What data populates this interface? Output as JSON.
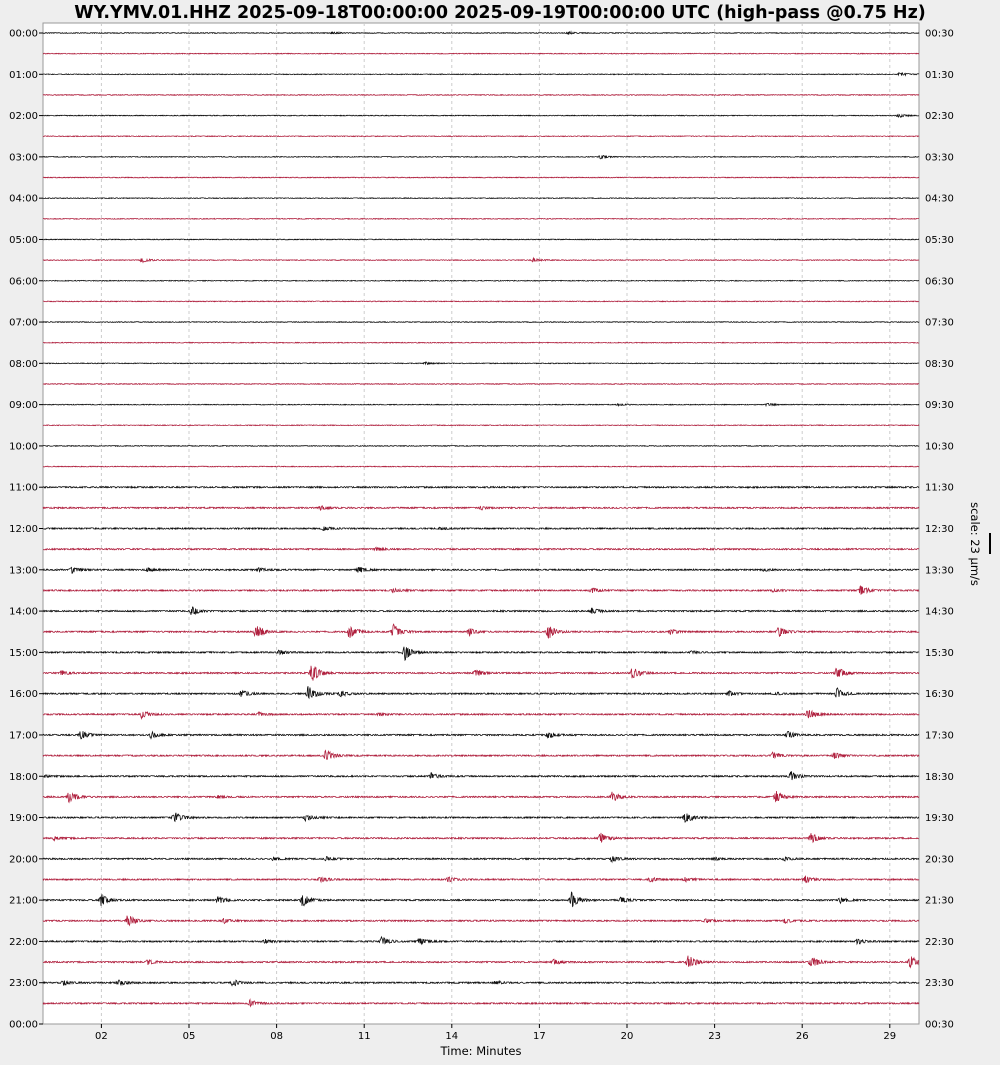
{
  "chart_data": {
    "type": "line",
    "title": "WY.YMV.01.HHZ 2025-09-18T00:00:00 2025-09-19T00:00:00 UTC (high-pass @0.75 Hz)",
    "xlabel": "Time: Minutes",
    "xlim": [
      0,
      30
    ],
    "xticks": [
      2,
      5,
      8,
      11,
      14,
      17,
      20,
      23,
      26,
      29
    ],
    "xtick_labels": [
      "02",
      "05",
      "08",
      "11",
      "14",
      "17",
      "20",
      "23",
      "26",
      "29"
    ],
    "left_labels": [
      "00:00",
      "01:00",
      "02:00",
      "03:00",
      "04:00",
      "05:00",
      "06:00",
      "07:00",
      "08:00",
      "09:00",
      "10:00",
      "11:00",
      "12:00",
      "13:00",
      "14:00",
      "15:00",
      "16:00",
      "17:00",
      "18:00",
      "19:00",
      "20:00",
      "21:00",
      "22:00",
      "23:00",
      "00:00"
    ],
    "right_labels": [
      "00:30",
      "01:30",
      "02:30",
      "03:30",
      "04:30",
      "05:30",
      "06:30",
      "07:30",
      "08:30",
      "09:30",
      "10:30",
      "11:30",
      "12:30",
      "13:30",
      "14:30",
      "15:30",
      "16:30",
      "17:30",
      "18:30",
      "19:30",
      "20:30",
      "21:30",
      "22:30",
      "23:30",
      "00:30"
    ],
    "scale_label": "scale: 23 µm/s",
    "scale_value_um_s": 23,
    "grid": "vertical dashed",
    "colors": {
      "even": "#111111",
      "odd": "#b0213f",
      "grid": "#cccccc"
    },
    "traces": [
      {
        "start": "00:00",
        "events": [
          [
            9.9,
            2
          ],
          [
            18.0,
            2
          ]
        ]
      },
      {
        "start": "00:30",
        "events": []
      },
      {
        "start": "01:00",
        "events": [
          [
            29.35,
            3
          ]
        ]
      },
      {
        "start": "01:30",
        "events": []
      },
      {
        "start": "02:00",
        "events": [
          [
            29.3,
            3
          ]
        ]
      },
      {
        "start": "02:30",
        "events": []
      },
      {
        "start": "03:00",
        "events": [
          [
            19.1,
            3
          ]
        ]
      },
      {
        "start": "03:30",
        "events": []
      },
      {
        "start": "04:00",
        "events": []
      },
      {
        "start": "04:30",
        "events": []
      },
      {
        "start": "05:00",
        "events": []
      },
      {
        "start": "05:30",
        "events": [
          [
            3.4,
            4
          ],
          [
            16.8,
            3
          ]
        ]
      },
      {
        "start": "06:00",
        "events": []
      },
      {
        "start": "06:30",
        "events": []
      },
      {
        "start": "07:00",
        "events": []
      },
      {
        "start": "07:30",
        "events": []
      },
      {
        "start": "08:00",
        "events": [
          [
            13.1,
            2
          ]
        ]
      },
      {
        "start": "08:30",
        "events": []
      },
      {
        "start": "09:00",
        "events": [
          [
            19.7,
            1.5
          ],
          [
            24.8,
            2
          ]
        ]
      },
      {
        "start": "09:30",
        "events": []
      },
      {
        "start": "10:00",
        "events": []
      },
      {
        "start": "10:30",
        "events": []
      },
      {
        "start": "11:00",
        "events": []
      },
      {
        "start": "11:30",
        "events": [
          [
            9.5,
            3
          ],
          [
            15.0,
            3
          ]
        ]
      },
      {
        "start": "12:00",
        "events": [
          [
            9.6,
            3
          ],
          [
            13.6,
            2
          ]
        ]
      },
      {
        "start": "12:30",
        "events": [
          [
            11.4,
            3
          ]
        ]
      },
      {
        "start": "13:00",
        "events": [
          [
            1.0,
            5
          ],
          [
            3.6,
            3
          ],
          [
            7.4,
            3
          ],
          [
            10.8,
            6
          ],
          [
            24.7,
            2
          ]
        ]
      },
      {
        "start": "13:30",
        "events": [
          [
            12.0,
            3
          ],
          [
            18.8,
            4
          ],
          [
            25.0,
            2
          ],
          [
            28.0,
            8
          ]
        ]
      },
      {
        "start": "14:00",
        "events": [
          [
            5.1,
            7
          ],
          [
            18.8,
            5
          ]
        ]
      },
      {
        "start": "14:30",
        "events": [
          [
            7.3,
            12
          ],
          [
            10.5,
            10
          ],
          [
            12.0,
            12
          ],
          [
            14.6,
            6
          ],
          [
            17.3,
            12
          ],
          [
            21.5,
            4
          ],
          [
            25.2,
            8
          ]
        ]
      },
      {
        "start": "15:00",
        "events": [
          [
            8.1,
            4
          ],
          [
            12.4,
            12
          ],
          [
            22.2,
            2
          ]
        ]
      },
      {
        "start": "15:30",
        "events": [
          [
            0.65,
            4
          ],
          [
            9.2,
            16
          ],
          [
            14.8,
            6
          ],
          [
            20.2,
            10
          ],
          [
            27.2,
            10
          ]
        ]
      },
      {
        "start": "16:00",
        "events": [
          [
            6.8,
            6
          ],
          [
            9.1,
            14
          ],
          [
            10.2,
            5
          ],
          [
            23.5,
            4
          ],
          [
            25.1,
            2
          ],
          [
            27.2,
            9
          ]
        ]
      },
      {
        "start": "16:30",
        "events": [
          [
            3.4,
            7
          ],
          [
            7.4,
            3
          ],
          [
            11.5,
            2
          ],
          [
            26.2,
            9
          ]
        ]
      },
      {
        "start": "17:00",
        "events": [
          [
            1.3,
            7
          ],
          [
            3.7,
            5
          ],
          [
            17.3,
            5
          ],
          [
            25.5,
            6
          ]
        ]
      },
      {
        "start": "17:30",
        "events": [
          [
            9.7,
            9
          ],
          [
            25.0,
            5
          ],
          [
            27.1,
            5
          ]
        ]
      },
      {
        "start": "18:00",
        "events": [
          [
            0.1,
            2
          ],
          [
            13.3,
            5
          ],
          [
            25.6,
            8
          ]
        ]
      },
      {
        "start": "18:30",
        "events": [
          [
            0.9,
            9
          ],
          [
            6.0,
            2
          ],
          [
            19.5,
            8
          ],
          [
            25.1,
            9
          ]
        ]
      },
      {
        "start": "19:00",
        "events": [
          [
            4.5,
            9
          ],
          [
            9.0,
            5
          ],
          [
            22.0,
            8
          ]
        ]
      },
      {
        "start": "19:30",
        "events": [
          [
            0.4,
            3
          ],
          [
            19.1,
            9
          ],
          [
            26.3,
            8
          ]
        ]
      },
      {
        "start": "20:00",
        "events": [
          [
            7.9,
            3
          ],
          [
            9.7,
            3
          ],
          [
            19.5,
            5
          ],
          [
            23.0,
            2
          ],
          [
            25.4,
            3
          ]
        ]
      },
      {
        "start": "20:30",
        "events": [
          [
            9.5,
            5
          ],
          [
            13.9,
            5
          ],
          [
            20.8,
            4
          ],
          [
            22.0,
            3
          ],
          [
            26.1,
            7
          ]
        ]
      },
      {
        "start": "21:00",
        "events": [
          [
            2.0,
            9
          ],
          [
            6.0,
            6
          ],
          [
            8.9,
            10
          ],
          [
            18.1,
            12
          ],
          [
            19.8,
            5
          ],
          [
            27.3,
            5
          ]
        ]
      },
      {
        "start": "21:30",
        "events": [
          [
            2.9,
            10
          ],
          [
            6.2,
            4
          ],
          [
            22.7,
            3
          ],
          [
            25.4,
            4
          ]
        ]
      },
      {
        "start": "22:00",
        "events": [
          [
            7.6,
            3
          ],
          [
            11.6,
            7
          ],
          [
            12.9,
            5
          ],
          [
            27.9,
            4
          ]
        ]
      },
      {
        "start": "22:30",
        "events": [
          [
            3.6,
            4
          ],
          [
            17.5,
            4
          ],
          [
            22.1,
            12
          ],
          [
            26.3,
            10
          ],
          [
            29.7,
            10
          ]
        ]
      },
      {
        "start": "23:00",
        "events": [
          [
            0.7,
            4
          ],
          [
            2.6,
            5
          ],
          [
            6.5,
            5
          ],
          [
            15.5,
            3
          ]
        ]
      },
      {
        "start": "23:30",
        "events": [
          [
            7.1,
            6
          ]
        ]
      }
    ]
  }
}
